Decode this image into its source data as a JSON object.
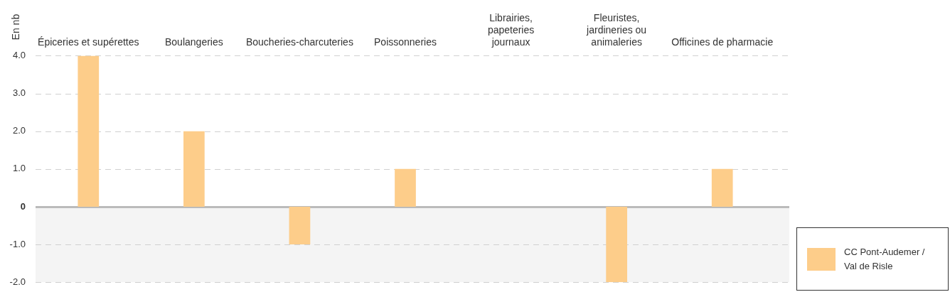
{
  "chart_data": {
    "type": "bar",
    "ylabel": "En nb",
    "categories": [
      "Épiceries et supérettes",
      "Boulangeries",
      "Boucheries-charcuteries",
      "Poissonneries",
      "Librairies, papeteries journaux",
      "Fleuristes, jardineries ou animaleries",
      "Officines de pharmacie"
    ],
    "series": [
      {
        "name": "CC Pont-Audemer / Val de Risle",
        "color": "#fdcd8a",
        "values": [
          4,
          2,
          -1,
          1,
          0,
          -2,
          1
        ]
      }
    ],
    "ylim": [
      -2,
      4
    ],
    "yticks": [
      {
        "value": -2,
        "label": "-2.0"
      },
      {
        "value": -1,
        "label": "-1.0"
      },
      0,
      {
        "value": 1,
        "label": "1.0"
      },
      {
        "value": 2,
        "label": "2.0"
      },
      {
        "value": 3,
        "label": "3.0"
      },
      {
        "value": 4,
        "label": "4.0"
      }
    ],
    "bands": [
      {
        "axis": "y",
        "from": -2,
        "to": 0,
        "color": "#f4f4f4"
      }
    ],
    "grid": "y",
    "legend": "bottom right"
  }
}
